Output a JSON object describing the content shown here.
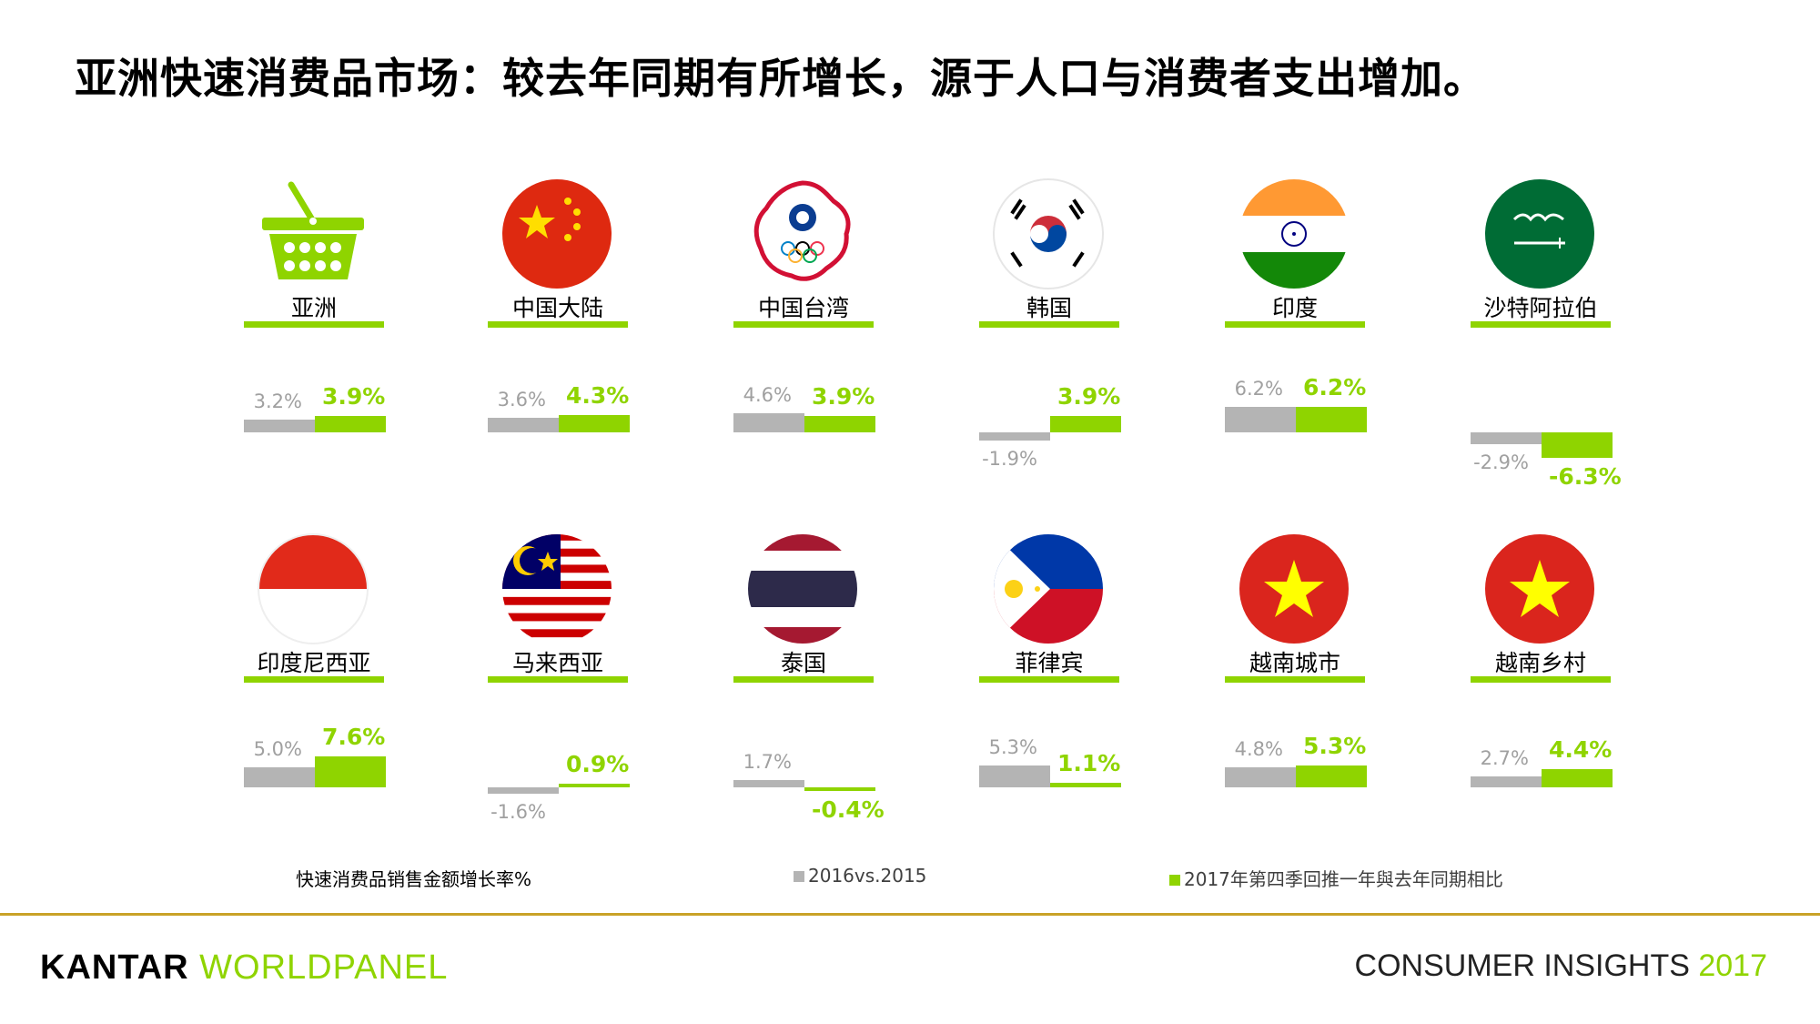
{
  "title": "亚洲快速消费品市场：较去年同期有所增长，源于人口与消费者支出增加。",
  "chart_data": {
    "type": "bar",
    "series": [
      {
        "name": "2016vs.2015",
        "color": "#b4b4b4"
      },
      {
        "name": "2017年第四季回推一年與去年同期相比",
        "color": "#8fd400"
      }
    ],
    "markets": [
      {
        "label": "亚洲",
        "icon": "basket-icon",
        "v2016": 3.2,
        "v2017": 3.9,
        "t2016": "3.2%",
        "t2017": "3.9%"
      },
      {
        "label": "中国大陆",
        "icon": "china-flag-icon",
        "v2016": 3.6,
        "v2017": 4.3,
        "t2016": "3.6%",
        "t2017": "4.3%"
      },
      {
        "label": "中国台湾",
        "icon": "chinese-taipei-flag-icon",
        "v2016": 4.6,
        "v2017": 3.9,
        "t2016": "4.6%",
        "t2017": "3.9%"
      },
      {
        "label": "韩国",
        "icon": "korea-flag-icon",
        "v2016": -1.9,
        "v2017": 3.9,
        "t2016": "-1.9%",
        "t2017": "3.9%"
      },
      {
        "label": "印度",
        "icon": "india-flag-icon",
        "v2016": 6.2,
        "v2017": 6.2,
        "t2016": "6.2%",
        "t2017": "6.2%"
      },
      {
        "label": "沙特阿拉伯",
        "icon": "saudi-flag-icon",
        "v2016": -2.9,
        "v2017": -6.3,
        "t2016": "-2.9%",
        "t2017": "-6.3%"
      },
      {
        "label": "印度尼西亚",
        "icon": "indonesia-flag-icon",
        "v2016": 5.0,
        "v2017": 7.6,
        "t2016": "5.0%",
        "t2017": "7.6%"
      },
      {
        "label": "马来西亚",
        "icon": "malaysia-flag-icon",
        "v2016": -1.6,
        "v2017": 0.9,
        "t2016": "-1.6%",
        "t2017": "0.9%"
      },
      {
        "label": "泰国",
        "icon": "thailand-flag-icon",
        "v2016": 1.7,
        "v2017": -0.4,
        "t2016": "1.7%",
        "t2017": "-0.4%"
      },
      {
        "label": "菲律宾",
        "icon": "philippines-flag-icon",
        "v2016": 5.3,
        "v2017": 1.1,
        "t2016": "5.3%",
        "t2017": "1.1%"
      },
      {
        "label": "越南城市",
        "icon": "vietnam-flag-icon",
        "v2016": 4.8,
        "v2017": 5.3,
        "t2016": "4.8%",
        "t2017": "5.3%"
      },
      {
        "label": "越南乡村",
        "icon": "vietnam-flag-icon",
        "v2016": 2.7,
        "v2017": 4.4,
        "t2016": "2.7%",
        "t2017": "4.4%"
      }
    ]
  },
  "legend": {
    "note": "快速消费品销售金额增长率%",
    "item1": "2016vs.2015",
    "item2": "2017年第四季回推一年與去年同期相比"
  },
  "footer": {
    "brand_part1": "KANTAR",
    "brand_part2": "WORLDPANEL",
    "insights_text": "CONSUMER INSIGHTS",
    "insights_year": "2017"
  }
}
